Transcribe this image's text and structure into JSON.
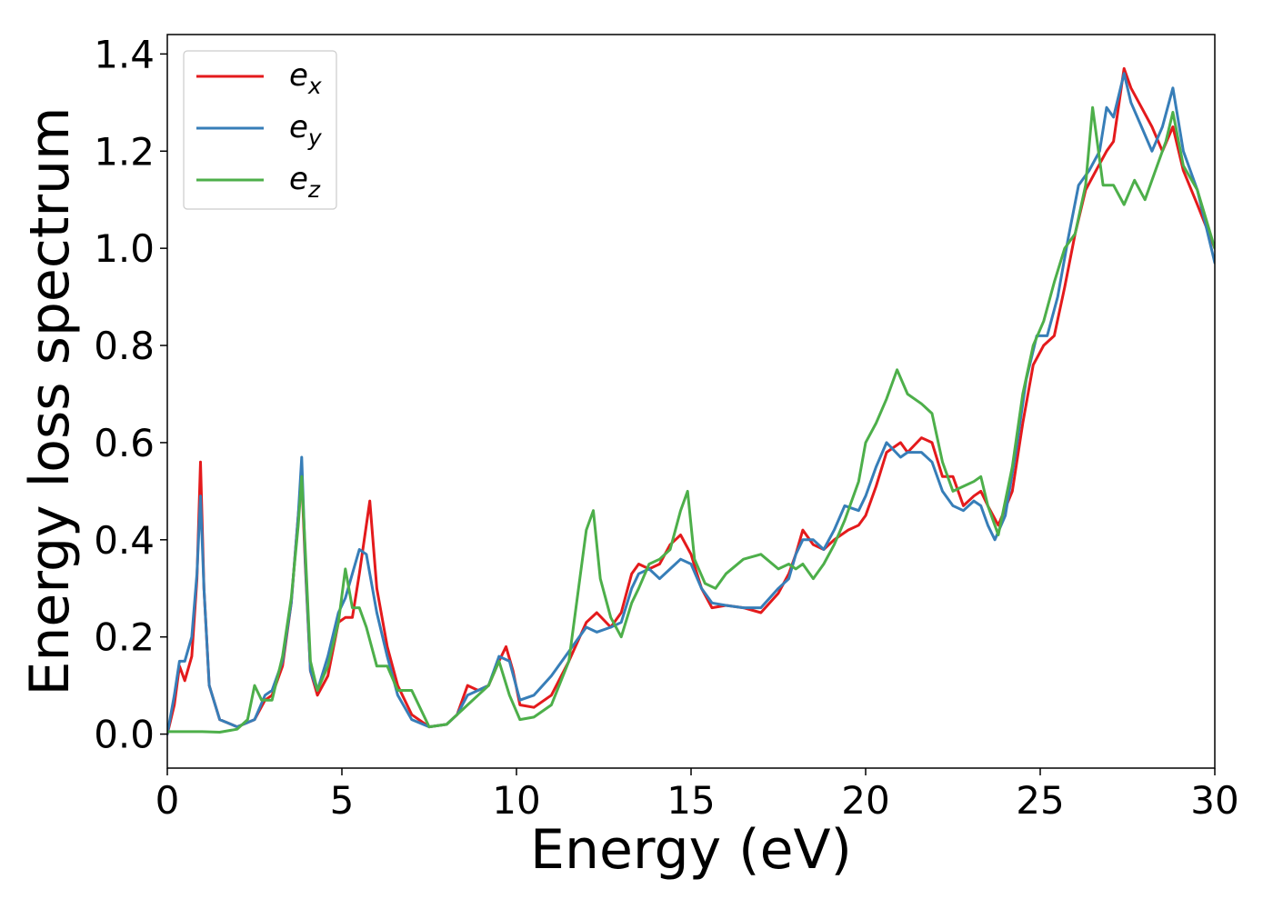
{
  "chart_data": {
    "type": "line",
    "title": "",
    "xlabel": "Energy (eV)",
    "ylabel": "Energy loss spectrum",
    "xlim": [
      0,
      30
    ],
    "ylim": [
      -0.07,
      1.44
    ],
    "xticks": [
      0,
      5,
      10,
      15,
      20,
      25,
      30
    ],
    "xtick_labels": [
      "0",
      "5",
      "10",
      "15",
      "20",
      "25",
      "30"
    ],
    "yticks": [
      0.0,
      0.2,
      0.4,
      0.6,
      0.8,
      1.0,
      1.2,
      1.4
    ],
    "ytick_labels": [
      "0.0",
      "0.2",
      "0.4",
      "0.6",
      "0.8",
      "1.0",
      "1.2",
      "1.4"
    ],
    "grid": false,
    "legend_position": "top-left",
    "series": [
      {
        "name": "x",
        "legend_base": "e",
        "legend_sub": "x",
        "color": "#e41a1c",
        "points": [
          [
            0,
            0.0
          ],
          [
            0.2,
            0.06
          ],
          [
            0.35,
            0.14
          ],
          [
            0.5,
            0.11
          ],
          [
            0.7,
            0.16
          ],
          [
            0.85,
            0.32
          ],
          [
            0.95,
            0.56
          ],
          [
            1.05,
            0.3
          ],
          [
            1.2,
            0.1
          ],
          [
            1.5,
            0.03
          ],
          [
            2.0,
            0.015
          ],
          [
            2.5,
            0.03
          ],
          [
            2.8,
            0.07
          ],
          [
            3.0,
            0.08
          ],
          [
            3.3,
            0.14
          ],
          [
            3.55,
            0.27
          ],
          [
            3.75,
            0.45
          ],
          [
            3.85,
            0.53
          ],
          [
            3.95,
            0.35
          ],
          [
            4.1,
            0.13
          ],
          [
            4.3,
            0.08
          ],
          [
            4.6,
            0.12
          ],
          [
            4.9,
            0.23
          ],
          [
            5.1,
            0.24
          ],
          [
            5.3,
            0.24
          ],
          [
            5.5,
            0.33
          ],
          [
            5.8,
            0.48
          ],
          [
            6.0,
            0.3
          ],
          [
            6.3,
            0.18
          ],
          [
            6.6,
            0.1
          ],
          [
            7.0,
            0.04
          ],
          [
            7.5,
            0.015
          ],
          [
            8.0,
            0.02
          ],
          [
            8.3,
            0.04
          ],
          [
            8.6,
            0.1
          ],
          [
            8.9,
            0.09
          ],
          [
            9.2,
            0.1
          ],
          [
            9.5,
            0.15
          ],
          [
            9.7,
            0.18
          ],
          [
            9.9,
            0.13
          ],
          [
            10.1,
            0.06
          ],
          [
            10.5,
            0.055
          ],
          [
            11.0,
            0.08
          ],
          [
            11.5,
            0.15
          ],
          [
            12.0,
            0.23
          ],
          [
            12.3,
            0.25
          ],
          [
            12.7,
            0.22
          ],
          [
            13.0,
            0.25
          ],
          [
            13.3,
            0.33
          ],
          [
            13.5,
            0.35
          ],
          [
            13.8,
            0.34
          ],
          [
            14.1,
            0.35
          ],
          [
            14.4,
            0.39
          ],
          [
            14.7,
            0.41
          ],
          [
            15.0,
            0.37
          ],
          [
            15.3,
            0.3
          ],
          [
            15.6,
            0.26
          ],
          [
            16.0,
            0.265
          ],
          [
            16.5,
            0.26
          ],
          [
            17.0,
            0.25
          ],
          [
            17.5,
            0.29
          ],
          [
            17.8,
            0.33
          ],
          [
            18.0,
            0.37
          ],
          [
            18.2,
            0.42
          ],
          [
            18.5,
            0.39
          ],
          [
            18.8,
            0.38
          ],
          [
            19.1,
            0.4
          ],
          [
            19.5,
            0.42
          ],
          [
            19.8,
            0.43
          ],
          [
            20.0,
            0.45
          ],
          [
            20.3,
            0.51
          ],
          [
            20.6,
            0.58
          ],
          [
            21.0,
            0.6
          ],
          [
            21.2,
            0.58
          ],
          [
            21.6,
            0.61
          ],
          [
            21.9,
            0.6
          ],
          [
            22.2,
            0.53
          ],
          [
            22.5,
            0.53
          ],
          [
            22.8,
            0.47
          ],
          [
            23.1,
            0.49
          ],
          [
            23.3,
            0.5
          ],
          [
            23.5,
            0.47
          ],
          [
            23.8,
            0.43
          ],
          [
            24.2,
            0.5
          ],
          [
            24.5,
            0.64
          ],
          [
            24.8,
            0.76
          ],
          [
            25.1,
            0.8
          ],
          [
            25.4,
            0.82
          ],
          [
            25.7,
            0.92
          ],
          [
            26.0,
            1.03
          ],
          [
            26.3,
            1.12
          ],
          [
            26.6,
            1.16
          ],
          [
            26.9,
            1.2
          ],
          [
            27.1,
            1.22
          ],
          [
            27.4,
            1.37
          ],
          [
            27.6,
            1.33
          ],
          [
            27.9,
            1.29
          ],
          [
            28.2,
            1.25
          ],
          [
            28.5,
            1.2
          ],
          [
            28.8,
            1.25
          ],
          [
            29.1,
            1.16
          ],
          [
            29.5,
            1.09
          ],
          [
            30.0,
            1.0
          ]
        ]
      },
      {
        "name": "y",
        "legend_base": "e",
        "legend_sub": "y",
        "color": "#377eb8",
        "points": [
          [
            0,
            0.0
          ],
          [
            0.2,
            0.08
          ],
          [
            0.35,
            0.15
          ],
          [
            0.5,
            0.15
          ],
          [
            0.7,
            0.2
          ],
          [
            0.85,
            0.33
          ],
          [
            0.95,
            0.49
          ],
          [
            1.05,
            0.3
          ],
          [
            1.2,
            0.1
          ],
          [
            1.5,
            0.03
          ],
          [
            2.0,
            0.015
          ],
          [
            2.5,
            0.03
          ],
          [
            2.8,
            0.08
          ],
          [
            3.0,
            0.09
          ],
          [
            3.3,
            0.15
          ],
          [
            3.55,
            0.27
          ],
          [
            3.75,
            0.45
          ],
          [
            3.85,
            0.57
          ],
          [
            3.95,
            0.36
          ],
          [
            4.1,
            0.13
          ],
          [
            4.3,
            0.09
          ],
          [
            4.6,
            0.16
          ],
          [
            4.9,
            0.25
          ],
          [
            5.1,
            0.28
          ],
          [
            5.3,
            0.33
          ],
          [
            5.5,
            0.38
          ],
          [
            5.7,
            0.37
          ],
          [
            6.0,
            0.25
          ],
          [
            6.3,
            0.16
          ],
          [
            6.6,
            0.08
          ],
          [
            7.0,
            0.03
          ],
          [
            7.5,
            0.015
          ],
          [
            8.0,
            0.02
          ],
          [
            8.3,
            0.04
          ],
          [
            8.6,
            0.08
          ],
          [
            8.9,
            0.09
          ],
          [
            9.2,
            0.1
          ],
          [
            9.5,
            0.16
          ],
          [
            9.8,
            0.15
          ],
          [
            10.1,
            0.07
          ],
          [
            10.5,
            0.08
          ],
          [
            11.0,
            0.12
          ],
          [
            11.5,
            0.17
          ],
          [
            12.0,
            0.22
          ],
          [
            12.3,
            0.21
          ],
          [
            12.7,
            0.22
          ],
          [
            13.0,
            0.23
          ],
          [
            13.3,
            0.3
          ],
          [
            13.5,
            0.33
          ],
          [
            13.8,
            0.34
          ],
          [
            14.1,
            0.32
          ],
          [
            14.4,
            0.34
          ],
          [
            14.7,
            0.36
          ],
          [
            15.0,
            0.35
          ],
          [
            15.3,
            0.3
          ],
          [
            15.6,
            0.27
          ],
          [
            16.0,
            0.265
          ],
          [
            16.5,
            0.26
          ],
          [
            17.0,
            0.26
          ],
          [
            17.5,
            0.3
          ],
          [
            17.8,
            0.32
          ],
          [
            18.0,
            0.37
          ],
          [
            18.2,
            0.4
          ],
          [
            18.5,
            0.4
          ],
          [
            18.8,
            0.38
          ],
          [
            19.1,
            0.42
          ],
          [
            19.4,
            0.47
          ],
          [
            19.8,
            0.46
          ],
          [
            20.0,
            0.49
          ],
          [
            20.3,
            0.55
          ],
          [
            20.6,
            0.6
          ],
          [
            21.0,
            0.57
          ],
          [
            21.2,
            0.58
          ],
          [
            21.6,
            0.58
          ],
          [
            21.9,
            0.56
          ],
          [
            22.2,
            0.5
          ],
          [
            22.5,
            0.47
          ],
          [
            22.8,
            0.46
          ],
          [
            23.1,
            0.48
          ],
          [
            23.3,
            0.47
          ],
          [
            23.5,
            0.43
          ],
          [
            23.7,
            0.4
          ],
          [
            24.0,
            0.45
          ],
          [
            24.3,
            0.58
          ],
          [
            24.6,
            0.73
          ],
          [
            24.9,
            0.82
          ],
          [
            25.2,
            0.82
          ],
          [
            25.5,
            0.9
          ],
          [
            25.8,
            1.02
          ],
          [
            26.1,
            1.13
          ],
          [
            26.4,
            1.16
          ],
          [
            26.7,
            1.2
          ],
          [
            26.9,
            1.29
          ],
          [
            27.1,
            1.27
          ],
          [
            27.4,
            1.36
          ],
          [
            27.6,
            1.3
          ],
          [
            27.9,
            1.25
          ],
          [
            28.2,
            1.2
          ],
          [
            28.5,
            1.25
          ],
          [
            28.8,
            1.33
          ],
          [
            29.1,
            1.2
          ],
          [
            29.5,
            1.12
          ],
          [
            30.0,
            0.97
          ]
        ]
      },
      {
        "name": "z",
        "legend_base": "e",
        "legend_sub": "z",
        "color": "#4daf4a",
        "points": [
          [
            0,
            0.005
          ],
          [
            0.5,
            0.005
          ],
          [
            1.0,
            0.005
          ],
          [
            1.5,
            0.004
          ],
          [
            2.0,
            0.01
          ],
          [
            2.3,
            0.03
          ],
          [
            2.5,
            0.1
          ],
          [
            2.7,
            0.07
          ],
          [
            3.0,
            0.07
          ],
          [
            3.3,
            0.16
          ],
          [
            3.55,
            0.28
          ],
          [
            3.75,
            0.43
          ],
          [
            3.85,
            0.53
          ],
          [
            3.95,
            0.38
          ],
          [
            4.1,
            0.15
          ],
          [
            4.3,
            0.09
          ],
          [
            4.6,
            0.14
          ],
          [
            4.9,
            0.23
          ],
          [
            5.1,
            0.34
          ],
          [
            5.3,
            0.26
          ],
          [
            5.5,
            0.26
          ],
          [
            5.7,
            0.22
          ],
          [
            6.0,
            0.14
          ],
          [
            6.3,
            0.14
          ],
          [
            6.6,
            0.09
          ],
          [
            7.0,
            0.09
          ],
          [
            7.5,
            0.015
          ],
          [
            8.0,
            0.02
          ],
          [
            8.3,
            0.04
          ],
          [
            8.6,
            0.06
          ],
          [
            8.9,
            0.08
          ],
          [
            9.2,
            0.1
          ],
          [
            9.5,
            0.15
          ],
          [
            9.8,
            0.08
          ],
          [
            10.1,
            0.03
          ],
          [
            10.5,
            0.035
          ],
          [
            11.0,
            0.06
          ],
          [
            11.5,
            0.15
          ],
          [
            12.0,
            0.42
          ],
          [
            12.2,
            0.46
          ],
          [
            12.4,
            0.32
          ],
          [
            12.7,
            0.24
          ],
          [
            13.0,
            0.2
          ],
          [
            13.3,
            0.27
          ],
          [
            13.5,
            0.3
          ],
          [
            13.8,
            0.35
          ],
          [
            14.1,
            0.36
          ],
          [
            14.4,
            0.38
          ],
          [
            14.7,
            0.46
          ],
          [
            14.9,
            0.5
          ],
          [
            15.1,
            0.36
          ],
          [
            15.4,
            0.31
          ],
          [
            15.7,
            0.3
          ],
          [
            16.0,
            0.33
          ],
          [
            16.5,
            0.36
          ],
          [
            17.0,
            0.37
          ],
          [
            17.5,
            0.34
          ],
          [
            17.8,
            0.35
          ],
          [
            18.0,
            0.34
          ],
          [
            18.2,
            0.35
          ],
          [
            18.5,
            0.32
          ],
          [
            18.8,
            0.35
          ],
          [
            19.1,
            0.39
          ],
          [
            19.4,
            0.44
          ],
          [
            19.8,
            0.52
          ],
          [
            20.0,
            0.6
          ],
          [
            20.3,
            0.64
          ],
          [
            20.6,
            0.69
          ],
          [
            20.9,
            0.75
          ],
          [
            21.2,
            0.7
          ],
          [
            21.6,
            0.68
          ],
          [
            21.9,
            0.66
          ],
          [
            22.2,
            0.56
          ],
          [
            22.5,
            0.5
          ],
          [
            22.8,
            0.51
          ],
          [
            23.1,
            0.52
          ],
          [
            23.3,
            0.53
          ],
          [
            23.5,
            0.47
          ],
          [
            23.8,
            0.41
          ],
          [
            24.2,
            0.55
          ],
          [
            24.5,
            0.7
          ],
          [
            24.8,
            0.8
          ],
          [
            25.1,
            0.85
          ],
          [
            25.4,
            0.93
          ],
          [
            25.7,
            1.0
          ],
          [
            26.0,
            1.03
          ],
          [
            26.3,
            1.13
          ],
          [
            26.5,
            1.29
          ],
          [
            26.8,
            1.13
          ],
          [
            27.1,
            1.13
          ],
          [
            27.4,
            1.09
          ],
          [
            27.7,
            1.14
          ],
          [
            28.0,
            1.1
          ],
          [
            28.3,
            1.16
          ],
          [
            28.6,
            1.22
          ],
          [
            28.8,
            1.28
          ],
          [
            29.1,
            1.17
          ],
          [
            29.5,
            1.12
          ],
          [
            30.0,
            1.0
          ]
        ]
      }
    ]
  }
}
